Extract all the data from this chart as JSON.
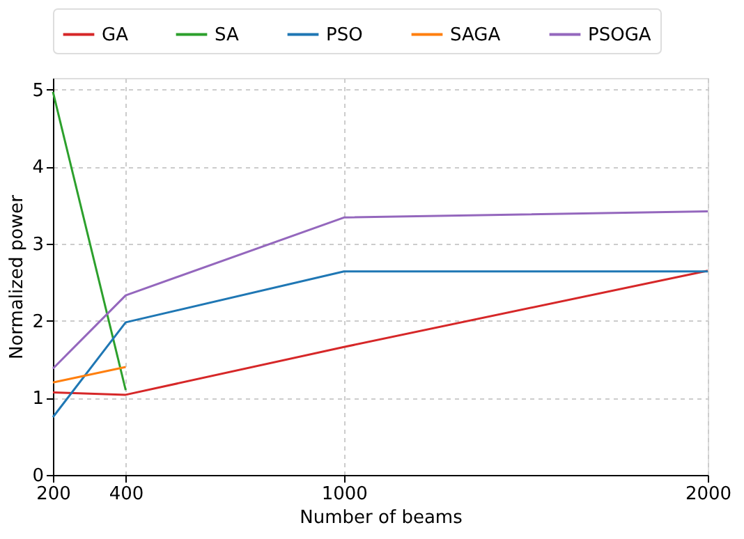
{
  "chart_data": {
    "type": "line",
    "xlabel": "Number of beams",
    "ylabel": "Normalized power",
    "x": [
      200,
      400,
      1000,
      2000
    ],
    "series": [
      {
        "name": "GA",
        "color": "#d62728",
        "values": [
          1.07,
          1.04,
          1.66,
          2.65
        ]
      },
      {
        "name": "SA",
        "color": "#2ca02c",
        "values": [
          4.97,
          1.1,
          null,
          null
        ]
      },
      {
        "name": "PSO",
        "color": "#1f77b4",
        "values": [
          0.75,
          1.98,
          2.64,
          2.64
        ]
      },
      {
        "name": "SAGA",
        "color": "#ff7f0e",
        "values": [
          1.2,
          1.4,
          null,
          null
        ]
      },
      {
        "name": "PSOGA",
        "color": "#9467bd",
        "values": [
          1.38,
          2.33,
          3.34,
          3.42
        ]
      }
    ],
    "xlim": [
      200,
      2000
    ],
    "xticks": [
      200,
      400,
      1000,
      2000
    ],
    "ylim": [
      0,
      5.15
    ],
    "yticks": [
      0,
      1,
      2,
      3,
      4,
      5
    ],
    "grid": true,
    "legend": "top",
    "marker": "none",
    "line_style": "solid"
  }
}
